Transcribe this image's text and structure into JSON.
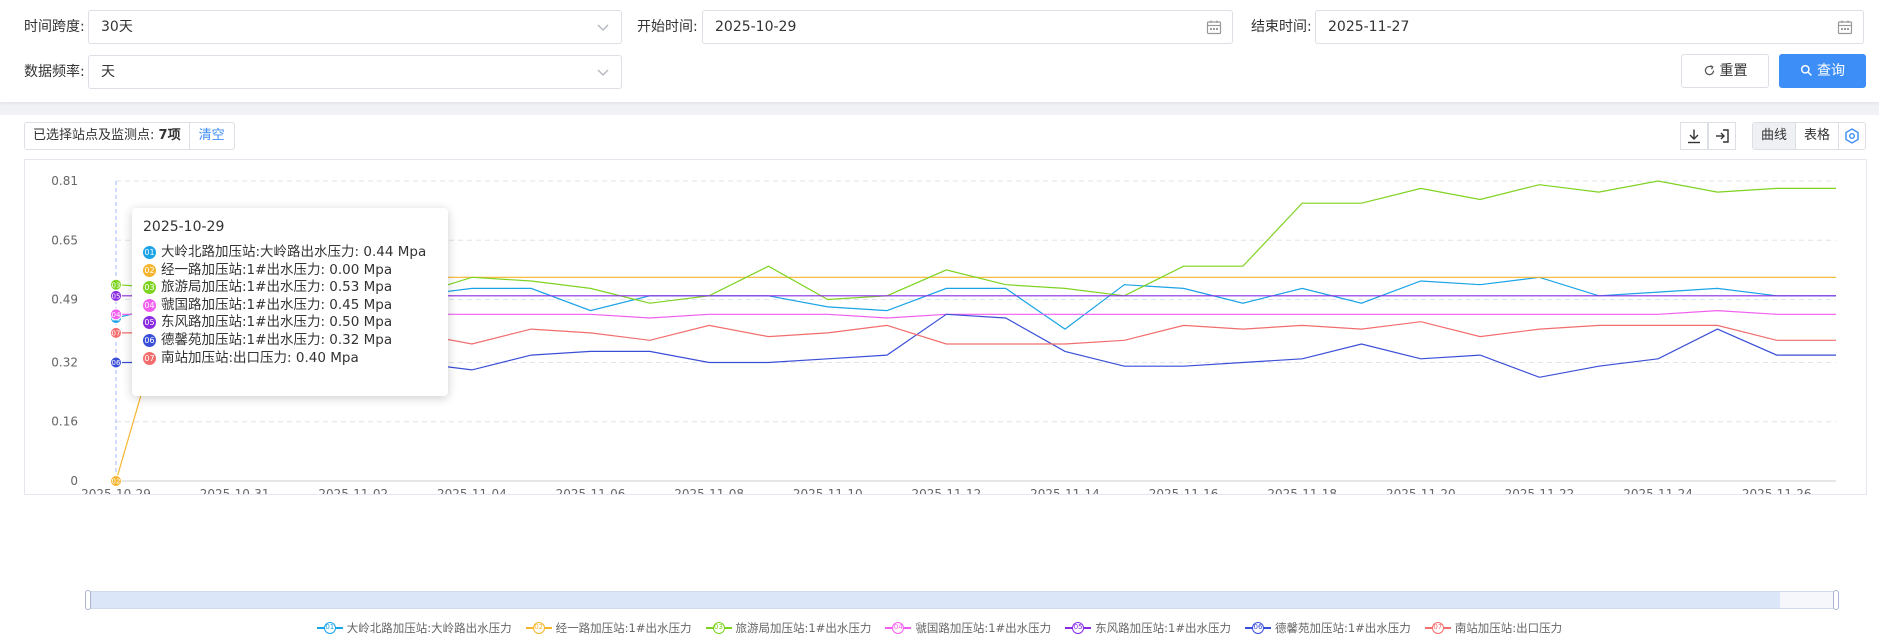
{
  "filters": {
    "span_label": "时间跨度:",
    "span_value": "30天",
    "start_label": "开始时间:",
    "start_value": "2025-10-29",
    "end_label": "结束时间:",
    "end_value": "2025-11-27",
    "freq_label": "数据频率:",
    "freq_value": "天",
    "reset_label": "重置",
    "query_label": "查询"
  },
  "toolbar": {
    "selected_label": "已选择站点及监测点:",
    "selected_count": "7项",
    "clear_label": "清空",
    "tab_curve": "曲线",
    "tab_table": "表格"
  },
  "tooltip": {
    "date": "2025-10-29",
    "rows": [
      {
        "num": "01",
        "text": "大岭北路加压站:大岭路出水压力: 0.44 Mpa",
        "color": "#1aa3e6"
      },
      {
        "num": "02",
        "text": "经一路加压站:1#出水压力: 0.00 Mpa",
        "color": "#f5b52e"
      },
      {
        "num": "03",
        "text": "旅游局加压站:1#出水压力: 0.53 Mpa",
        "color": "#7ed321"
      },
      {
        "num": "04",
        "text": "虢国路加压站:1#出水压力: 0.45 Mpa",
        "color": "#f25ff0"
      },
      {
        "num": "05",
        "text": "东风路加压站:1#出水压力: 0.50 Mpa",
        "color": "#8a2be2"
      },
      {
        "num": "06",
        "text": "德馨苑加压站:1#出水压力: 0.32 Mpa",
        "color": "#3a4fd8"
      },
      {
        "num": "07",
        "text": "南站加压站:出口压力: 0.40 Mpa",
        "color": "#f26d6d"
      }
    ]
  },
  "chart_data": {
    "type": "line",
    "x": [
      "2025-10-29",
      "2025-10-30",
      "2025-10-31",
      "2025-11-01",
      "2025-11-02",
      "2025-11-03",
      "2025-11-04",
      "2025-11-05",
      "2025-11-06",
      "2025-11-07",
      "2025-11-08",
      "2025-11-09",
      "2025-11-10",
      "2025-11-11",
      "2025-11-12",
      "2025-11-13",
      "2025-11-14",
      "2025-11-15",
      "2025-11-16",
      "2025-11-17",
      "2025-11-18",
      "2025-11-19",
      "2025-11-20",
      "2025-11-21",
      "2025-11-22",
      "2025-11-23",
      "2025-11-24",
      "2025-11-25",
      "2025-11-26",
      "2025-11-27"
    ],
    "x_tick_labels": [
      "2025-10-29",
      "2025-10-31",
      "2025-11-02",
      "2025-11-04",
      "2025-11-06",
      "2025-11-08",
      "2025-11-10",
      "2025-11-12",
      "2025-11-14",
      "2025-11-16",
      "2025-11-18",
      "2025-11-20",
      "2025-11-22",
      "2025-11-24",
      "2025-11-26"
    ],
    "y_ticks": [
      "0",
      "0.16",
      "0.32",
      "0.49",
      "0.65",
      "0.81"
    ],
    "ylim": [
      0,
      0.81
    ],
    "grid": true,
    "legend_position": "bottom",
    "series": [
      {
        "num": "01",
        "name": "大岭北路加压站:大岭路出水压力",
        "color": "#1aa3e6",
        "values": [
          0.44,
          0.48,
          0.5,
          0.5,
          0.51,
          0.5,
          0.52,
          0.52,
          0.46,
          0.5,
          0.5,
          0.5,
          0.47,
          0.46,
          0.52,
          0.52,
          0.41,
          0.53,
          0.52,
          0.48,
          0.52,
          0.48,
          0.54,
          0.53,
          0.55,
          0.5,
          0.51,
          0.52,
          0.5,
          0.5
        ]
      },
      {
        "num": "02",
        "name": "经一路加压站:1#出水压力",
        "color": "#f5b52e",
        "values": [
          0.0,
          0.55,
          0.55,
          0.55,
          0.55,
          0.55,
          0.55,
          0.55,
          0.55,
          0.55,
          0.55,
          0.55,
          0.55,
          0.55,
          0.55,
          0.55,
          0.55,
          0.55,
          0.55,
          0.55,
          0.55,
          0.55,
          0.55,
          0.55,
          0.55,
          0.55,
          0.55,
          0.55,
          0.55,
          0.55
        ]
      },
      {
        "num": "03",
        "name": "旅游局加压站:1#出水压力",
        "color": "#7ed321",
        "values": [
          0.53,
          0.52,
          0.52,
          0.52,
          0.52,
          0.5,
          0.55,
          0.54,
          0.52,
          0.48,
          0.5,
          0.58,
          0.49,
          0.5,
          0.57,
          0.53,
          0.52,
          0.5,
          0.58,
          0.58,
          0.75,
          0.75,
          0.79,
          0.76,
          0.8,
          0.78,
          0.81,
          0.78,
          0.79,
          0.79
        ]
      },
      {
        "num": "04",
        "name": "虢国路加压站:1#出水压力",
        "color": "#f25ff0",
        "values": [
          0.45,
          0.45,
          0.45,
          0.45,
          0.45,
          0.45,
          0.45,
          0.45,
          0.45,
          0.44,
          0.45,
          0.45,
          0.45,
          0.44,
          0.45,
          0.45,
          0.45,
          0.45,
          0.45,
          0.45,
          0.45,
          0.45,
          0.45,
          0.45,
          0.45,
          0.45,
          0.45,
          0.46,
          0.45,
          0.45
        ]
      },
      {
        "num": "05",
        "name": "东风路加压站:1#出水压力",
        "color": "#8a2be2",
        "values": [
          0.5,
          0.5,
          0.5,
          0.5,
          0.5,
          0.5,
          0.5,
          0.5,
          0.5,
          0.5,
          0.5,
          0.5,
          0.5,
          0.5,
          0.5,
          0.5,
          0.5,
          0.5,
          0.5,
          0.5,
          0.5,
          0.5,
          0.5,
          0.5,
          0.5,
          0.5,
          0.5,
          0.5,
          0.5,
          0.5
        ]
      },
      {
        "num": "06",
        "name": "德馨苑加压站:1#出水压力",
        "color": "#3a4fd8",
        "values": [
          0.32,
          0.32,
          0.33,
          0.32,
          0.32,
          0.32,
          0.3,
          0.34,
          0.35,
          0.35,
          0.32,
          0.32,
          0.33,
          0.34,
          0.45,
          0.44,
          0.35,
          0.31,
          0.31,
          0.32,
          0.33,
          0.37,
          0.33,
          0.34,
          0.28,
          0.31,
          0.33,
          0.41,
          0.34,
          0.34
        ]
      },
      {
        "num": "07",
        "name": "南站加压站:出口压力",
        "color": "#f26d6d",
        "values": [
          0.4,
          0.4,
          0.4,
          0.4,
          0.4,
          0.4,
          0.37,
          0.41,
          0.4,
          0.38,
          0.42,
          0.39,
          0.4,
          0.42,
          0.37,
          0.37,
          0.37,
          0.38,
          0.42,
          0.41,
          0.42,
          0.41,
          0.43,
          0.39,
          0.41,
          0.42,
          0.42,
          0.42,
          0.38,
          0.38
        ]
      }
    ]
  }
}
